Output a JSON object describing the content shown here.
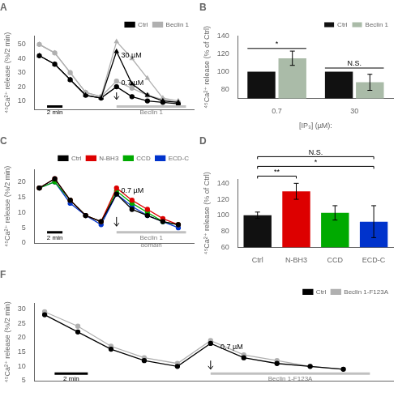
{
  "chart_data": [
    {
      "type": "line",
      "title": "A",
      "ylabel": "⁴⁵Ca²⁺ release (%/2 min)",
      "x": [
        0,
        1,
        2,
        3,
        4,
        5,
        6,
        7,
        8,
        9
      ],
      "series": [
        {
          "name": "Ctrl",
          "color": "black",
          "marker": "triangle",
          "values": [
            42,
            36,
            25,
            14,
            12,
            45,
            22,
            14,
            10,
            9
          ]
        },
        {
          "name": "Beclin 1",
          "color": "#b0b0b0",
          "marker": "triangle",
          "values": [
            50,
            44,
            30,
            16,
            13,
            52,
            40,
            26,
            12,
            10
          ]
        },
        {
          "name": "Ctrl",
          "color": "black",
          "marker": "circle",
          "values": [
            42,
            36,
            25,
            14,
            12,
            20,
            13,
            10,
            9,
            8
          ]
        },
        {
          "name": "Beclin 1",
          "color": "#b0b0b0",
          "marker": "circle",
          "values": [
            50,
            44,
            30,
            16,
            13,
            24,
            19,
            14,
            11,
            9
          ]
        }
      ],
      "xlim": [
        -0.3,
        10
      ],
      "ylim": [
        4,
        56
      ],
      "yticks": [
        10,
        20,
        30,
        40,
        50
      ],
      "tick_labels": "y",
      "grid": false,
      "legend": "upper right",
      "annotations": [
        {
          "text": "30 µM",
          "x": 5.3,
          "y": 41
        },
        {
          "text": "0.7 µM",
          "x": 5.3,
          "y": 21
        }
      ],
      "arrows": [
        {
          "x": 5,
          "y_from": 16,
          "y_to": 11
        }
      ],
      "spans": [
        {
          "text": "Beclin 1",
          "x": [
            5.0,
            9.5
          ],
          "y": 6,
          "color": "#c0c0c0"
        },
        {
          "text": "2 min",
          "x": [
            0.5,
            1.5
          ],
          "y": 6,
          "color": "black"
        }
      ]
    },
    {
      "type": "bar",
      "title": "B",
      "ylabel": "⁴⁵Ca²⁺ release (% of Ctrl)",
      "xlabel": "[IP₃] (µM):",
      "categories": [
        "0.7",
        "30"
      ],
      "series": [
        {
          "name": "Ctrl",
          "color": "#111111",
          "values": [
            100,
            100
          ]
        },
        {
          "name": "Beclin 1",
          "color": "#aabba8",
          "values": [
            115,
            88
          ],
          "errors": [
            8,
            9
          ]
        }
      ],
      "ylim": [
        70,
        140
      ],
      "yticks": [
        80,
        100,
        120,
        140
      ],
      "grid": false,
      "legend": "upper right",
      "significance": [
        {
          "text": "*",
          "from": "0.7",
          "to": "0.7",
          "y": 126
        },
        {
          "text": "N.S.",
          "from": "30",
          "to": "30",
          "y": 104
        }
      ]
    },
    {
      "type": "line",
      "title": "C",
      "ylabel": "⁴⁵Ca²⁺ release (%/2 min)",
      "x": [
        0,
        1,
        2,
        3,
        4,
        5,
        6,
        7,
        8,
        9
      ],
      "series": [
        {
          "name": "Ctrl",
          "color": "black",
          "marker": "circle",
          "values": [
            18,
            21,
            14,
            9,
            7,
            16,
            11,
            9,
            7,
            6
          ]
        },
        {
          "name": "N-BH3",
          "color": "#dd0000",
          "marker": "circle",
          "values": [
            18,
            21,
            14,
            9,
            7,
            18,
            14,
            11,
            8,
            6
          ]
        },
        {
          "name": "CCD",
          "color": "#00aa00",
          "marker": "circle",
          "values": [
            18,
            20,
            14,
            9,
            7,
            17,
            13,
            10,
            7,
            6
          ]
        },
        {
          "name": "ECD-C",
          "color": "#0033cc",
          "marker": "circle",
          "values": [
            18,
            20,
            13,
            9,
            6,
            16,
            12,
            9,
            7,
            5
          ]
        }
      ],
      "xlim": [
        -0.3,
        10
      ],
      "ylim": [
        0,
        24
      ],
      "yticks": [
        0,
        5,
        10,
        15,
        20
      ],
      "tick_labels": "y",
      "grid": false,
      "legend": "upper right",
      "annotations": [
        {
          "text": "0.7 µM",
          "x": 5.3,
          "y": 16.5
        }
      ],
      "arrows": [
        {
          "x": 5,
          "y_from": 8.5,
          "y_to": 5.5
        }
      ],
      "spans": [
        {
          "text": "Beclin 1\ndomain",
          "x": [
            5.0,
            9.5
          ],
          "y": 3.5,
          "color": "#c0c0c0"
        },
        {
          "text": "2 min",
          "x": [
            0.5,
            1.5
          ],
          "y": 3.5,
          "color": "black"
        }
      ]
    },
    {
      "type": "bar",
      "title": "D",
      "ylabel": "⁴⁵Ca²⁺ release (% of Ctrl)",
      "categories": [
        "Ctrl",
        "N-BH3",
        "CCD",
        "ECD-C"
      ],
      "series": [
        {
          "name": "",
          "colors": [
            "#111111",
            "#dd0000",
            "#00aa00",
            "#0033cc"
          ],
          "values": [
            100,
            130,
            103,
            92
          ],
          "errors": [
            4,
            10,
            9,
            20
          ]
        }
      ],
      "ylim": [
        60,
        145
      ],
      "yticks": [
        60,
        80,
        100,
        120,
        140
      ],
      "grid": false,
      "significance": [
        {
          "text": "**",
          "from": "Ctrl",
          "to": "N-BH3"
        },
        {
          "text": "*",
          "from": "Ctrl",
          "to": "ECD-C"
        },
        {
          "text": "N.S.",
          "from": "Ctrl",
          "to": "ECD-C"
        }
      ]
    },
    {
      "type": "line",
      "title": "F",
      "ylabel": "⁴⁵Ca²⁺ release (%/2 min)",
      "x": [
        0,
        1,
        2,
        3,
        4,
        5,
        6,
        7,
        8,
        9
      ],
      "series": [
        {
          "name": "Ctrl",
          "color": "black",
          "marker": "circle",
          "values": [
            28,
            22,
            16,
            12,
            10,
            18,
            13,
            11,
            10,
            9
          ]
        },
        {
          "name": "Beclin 1-F123A",
          "color": "#b0b0b0",
          "marker": "circle",
          "values": [
            29,
            24,
            17,
            13,
            11,
            19,
            14,
            12,
            10,
            9
          ]
        }
      ],
      "xlim": [
        -0.3,
        10.5
      ],
      "ylim": [
        5,
        32
      ],
      "yticks": [
        5,
        10,
        15,
        20,
        25,
        30
      ],
      "tick_labels": "y",
      "grid": false,
      "legend": "upper right",
      "annotations": [
        {
          "text": "0.7 µM",
          "x": 5.3,
          "y": 16
        }
      ],
      "arrows": [
        {
          "x": 5,
          "y_from": 12,
          "y_to": 9.0
        }
      ],
      "spans": [
        {
          "text": "Beclin 1-F123A",
          "x": [
            5.0,
            9.8
          ],
          "y": 7.5,
          "color": "#c0c0c0"
        },
        {
          "text": "2 min",
          "x": [
            0.3,
            1.3
          ],
          "y": 7.5,
          "color": "black"
        }
      ]
    }
  ]
}
